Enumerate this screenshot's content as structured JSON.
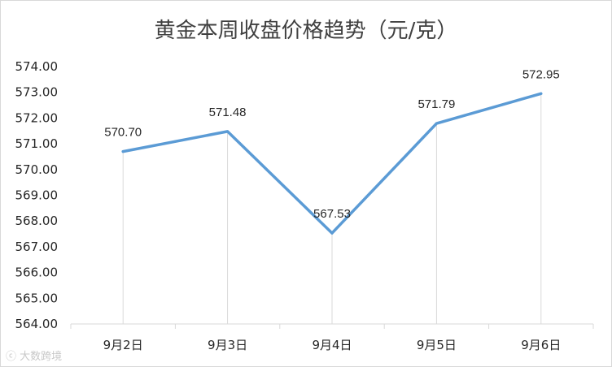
{
  "chart_data": {
    "type": "line",
    "title": "黄金本周收盘价格趋势（元/克）",
    "categories": [
      "9月2日",
      "9月3日",
      "9月4日",
      "9月5日",
      "9月6日"
    ],
    "series": [
      {
        "values": [
          570.7,
          571.48,
          567.53,
          571.79,
          572.95
        ]
      }
    ],
    "data_labels": [
      "570.70",
      "571.48",
      "567.53",
      "571.79",
      "572.95"
    ],
    "y_ticks": [
      "564.00",
      "565.00",
      "566.00",
      "567.00",
      "568.00",
      "569.00",
      "570.00",
      "571.00",
      "572.00",
      "573.00",
      "574.00"
    ],
    "ylim": [
      564,
      574
    ],
    "grid": false,
    "drop_lines": true,
    "legend": "none",
    "line_color": "#5b9bd5"
  },
  "watermark": "大数跨境"
}
